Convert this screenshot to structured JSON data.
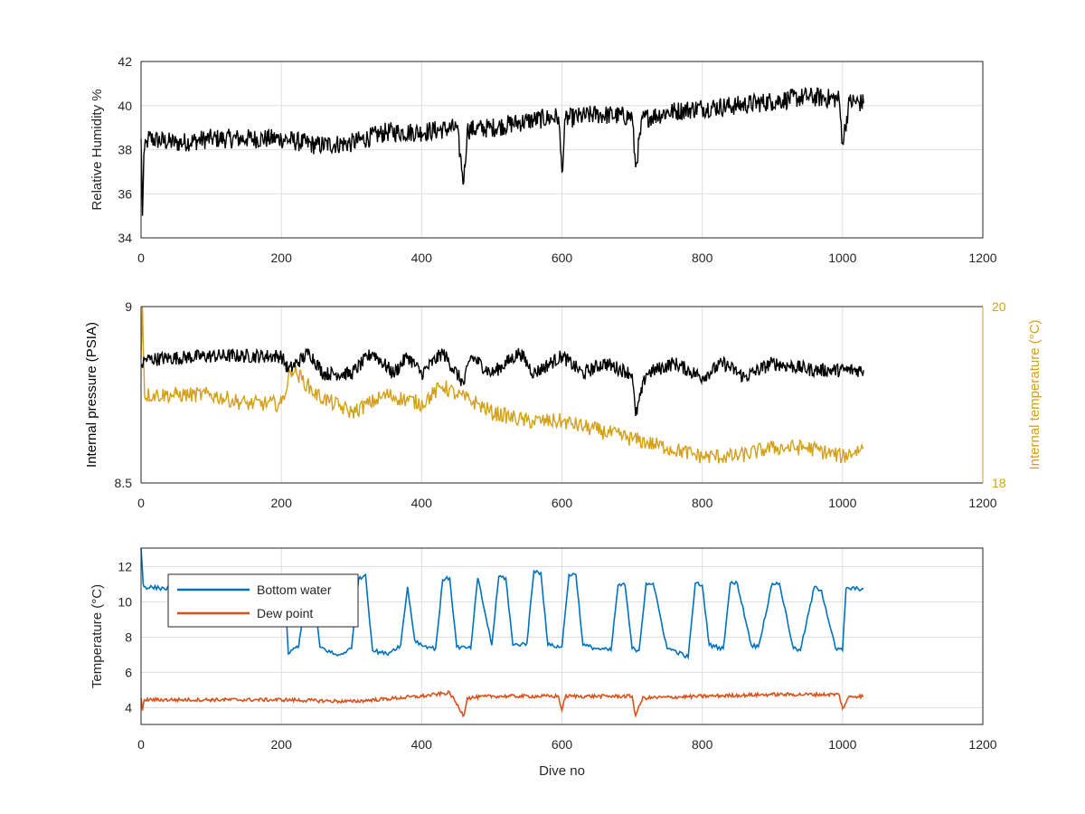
{
  "chart_data": [
    {
      "type": "line",
      "title": "",
      "xlabel": "",
      "ylabel": "Relative Humidity %",
      "xlim": [
        0,
        1200
      ],
      "ylim": [
        34,
        42
      ],
      "x_ticks": [
        0,
        200,
        400,
        600,
        800,
        1000,
        1200
      ],
      "y_ticks": [
        34,
        36,
        38,
        40,
        42
      ],
      "grid": true,
      "series": [
        {
          "color": "#000000",
          "x": [
            0,
            2,
            4,
            10,
            50,
            100,
            150,
            200,
            250,
            300,
            350,
            400,
            450,
            460,
            465,
            500,
            550,
            595,
            600,
            605,
            650,
            700,
            705,
            715,
            750,
            800,
            850,
            900,
            950,
            995,
            1000,
            1010,
            1030
          ],
          "values": [
            38.5,
            35.0,
            37.8,
            38.5,
            38.3,
            38.5,
            38.5,
            38.5,
            38.2,
            38.3,
            38.8,
            38.8,
            39.0,
            36.5,
            38.9,
            39.0,
            39.3,
            39.5,
            37.0,
            39.4,
            39.6,
            39.5,
            37.2,
            39.4,
            39.7,
            39.9,
            40.0,
            40.2,
            40.4,
            40.3,
            38.3,
            40.2,
            40.1
          ]
        }
      ]
    },
    {
      "type": "line",
      "title": "",
      "xlabel": "",
      "ylabel": "Internal pressure (PSIA)",
      "y2label": "Internal temperature (°C)",
      "xlim": [
        0,
        1200
      ],
      "ylim": [
        8.5,
        9
      ],
      "y2lim": [
        18,
        20
      ],
      "x_ticks": [
        0,
        200,
        400,
        600,
        800,
        1000,
        1200
      ],
      "y_ticks": [
        8.5,
        9
      ],
      "y2_ticks": [
        18,
        20
      ],
      "grid": true,
      "series": [
        {
          "axis": "left",
          "color": "#000000",
          "x": [
            0,
            5,
            100,
            200,
            210,
            240,
            260,
            300,
            330,
            360,
            380,
            400,
            430,
            460,
            470,
            500,
            540,
            560,
            600,
            630,
            660,
            700,
            705,
            720,
            760,
            800,
            830,
            860,
            900,
            960,
            1030
          ],
          "values": [
            8.83,
            8.85,
            8.86,
            8.86,
            8.82,
            8.87,
            8.81,
            8.81,
            8.87,
            8.81,
            8.86,
            8.81,
            8.87,
            8.78,
            8.86,
            8.81,
            8.87,
            8.81,
            8.86,
            8.81,
            8.84,
            8.81,
            8.69,
            8.81,
            8.84,
            8.8,
            8.84,
            8.8,
            8.84,
            8.82,
            8.82
          ]
        },
        {
          "axis": "right",
          "color": "#D4A017",
          "x": [
            0,
            2,
            5,
            50,
            100,
            150,
            200,
            215,
            250,
            300,
            350,
            400,
            430,
            450,
            480,
            500,
            550,
            600,
            650,
            700,
            750,
            800,
            850,
            900,
            950,
            1000,
            1030
          ],
          "values": [
            19.4,
            20.0,
            19.0,
            19.0,
            19.0,
            18.9,
            18.9,
            19.3,
            19.0,
            18.8,
            19.0,
            18.9,
            19.1,
            19.0,
            18.9,
            18.8,
            18.7,
            18.7,
            18.6,
            18.5,
            18.4,
            18.3,
            18.3,
            18.4,
            18.4,
            18.3,
            18.4
          ]
        }
      ]
    },
    {
      "type": "line",
      "title": "",
      "xlabel": "Dive no",
      "ylabel": "Temperature (°C)",
      "xlim": [
        0,
        1200
      ],
      "ylim": [
        3,
        13
      ],
      "x_ticks": [
        0,
        200,
        400,
        600,
        800,
        1000,
        1200
      ],
      "y_ticks": [
        4,
        6,
        8,
        10,
        12
      ],
      "grid": true,
      "legend": "top-left",
      "series": [
        {
          "name": "Bottom water",
          "color": "#0072BD",
          "x": [
            0,
            3,
            5,
            40,
            100,
            205,
            210,
            225,
            235,
            245,
            255,
            280,
            300,
            310,
            320,
            330,
            350,
            370,
            380,
            390,
            400,
            420,
            430,
            440,
            450,
            470,
            480,
            500,
            510,
            520,
            530,
            550,
            560,
            570,
            580,
            600,
            610,
            620,
            630,
            650,
            670,
            680,
            690,
            700,
            710,
            720,
            730,
            750,
            760,
            780,
            790,
            800,
            810,
            830,
            840,
            850,
            870,
            880,
            900,
            910,
            930,
            940,
            960,
            970,
            990,
            1000,
            1005,
            1010,
            1030
          ],
          "values": [
            13.0,
            11.0,
            10.8,
            10.7,
            10.7,
            10.7,
            7.0,
            7.5,
            10.6,
            10.6,
            7.4,
            6.9,
            7.3,
            11.2,
            11.5,
            7.2,
            7.0,
            7.5,
            10.8,
            7.8,
            7.5,
            7.3,
            11.2,
            11.3,
            7.4,
            7.3,
            11.3,
            7.5,
            11.4,
            11.3,
            7.5,
            7.6,
            11.7,
            11.6,
            7.5,
            7.4,
            11.5,
            11.5,
            7.5,
            7.3,
            7.2,
            10.9,
            10.9,
            7.3,
            7.2,
            11.0,
            11.0,
            7.3,
            7.2,
            6.8,
            11.0,
            10.9,
            7.5,
            7.3,
            11.0,
            11.0,
            7.5,
            7.4,
            11.0,
            11.0,
            7.3,
            7.2,
            10.8,
            10.6,
            7.3,
            7.2,
            10.7,
            10.7,
            10.7
          ]
        },
        {
          "name": "Dew point",
          "color": "#D95319",
          "x": [
            0,
            2,
            5,
            50,
            100,
            200,
            300,
            400,
            440,
            460,
            465,
            500,
            595,
            600,
            605,
            700,
            705,
            715,
            800,
            900,
            995,
            1000,
            1010,
            1030
          ],
          "values": [
            4.5,
            3.8,
            4.4,
            4.4,
            4.4,
            4.4,
            4.3,
            4.6,
            4.8,
            3.5,
            4.5,
            4.6,
            4.6,
            3.8,
            4.6,
            4.6,
            3.5,
            4.5,
            4.6,
            4.7,
            4.7,
            3.9,
            4.6,
            4.6
          ]
        }
      ]
    }
  ]
}
